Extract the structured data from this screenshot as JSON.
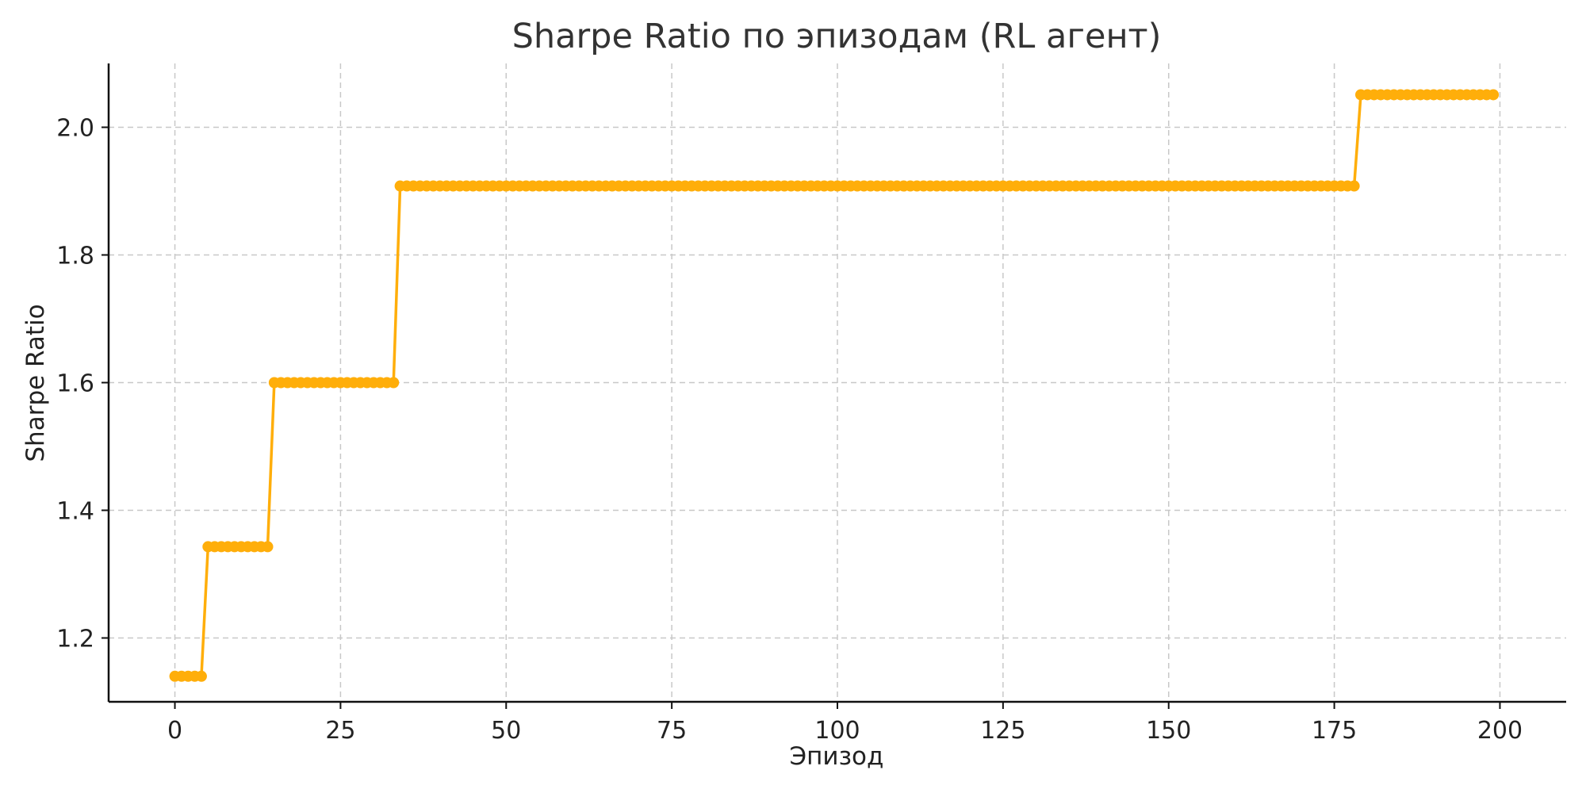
{
  "chart_data": {
    "type": "line",
    "title": "Sharpe Ratio по эпизодам (RL агент)",
    "xlabel": "Эпизод",
    "ylabel": "Sharpe Ratio",
    "xlim": [
      -10,
      210
    ],
    "ylim": [
      1.1,
      2.1
    ],
    "xticks": [
      0,
      25,
      50,
      75,
      100,
      125,
      150,
      175,
      200
    ],
    "yticks": [
      1.2,
      1.4,
      1.6,
      1.8,
      2.0
    ],
    "ytick_labels": [
      "1.2",
      "1.4",
      "1.6",
      "1.8",
      "2.0"
    ],
    "grid": true,
    "markers": true,
    "series_color": "#FFAE0A",
    "x_range": [
      0,
      199
    ],
    "steps": [
      {
        "from_episode": 0,
        "to_episode": 4,
        "value": 1.14
      },
      {
        "from_episode": 5,
        "to_episode": 14,
        "value": 1.343
      },
      {
        "from_episode": 15,
        "to_episode": 33,
        "value": 1.6
      },
      {
        "from_episode": 34,
        "to_episode": 178,
        "value": 1.908
      },
      {
        "from_episode": 179,
        "to_episode": 199,
        "value": 2.051
      }
    ]
  }
}
